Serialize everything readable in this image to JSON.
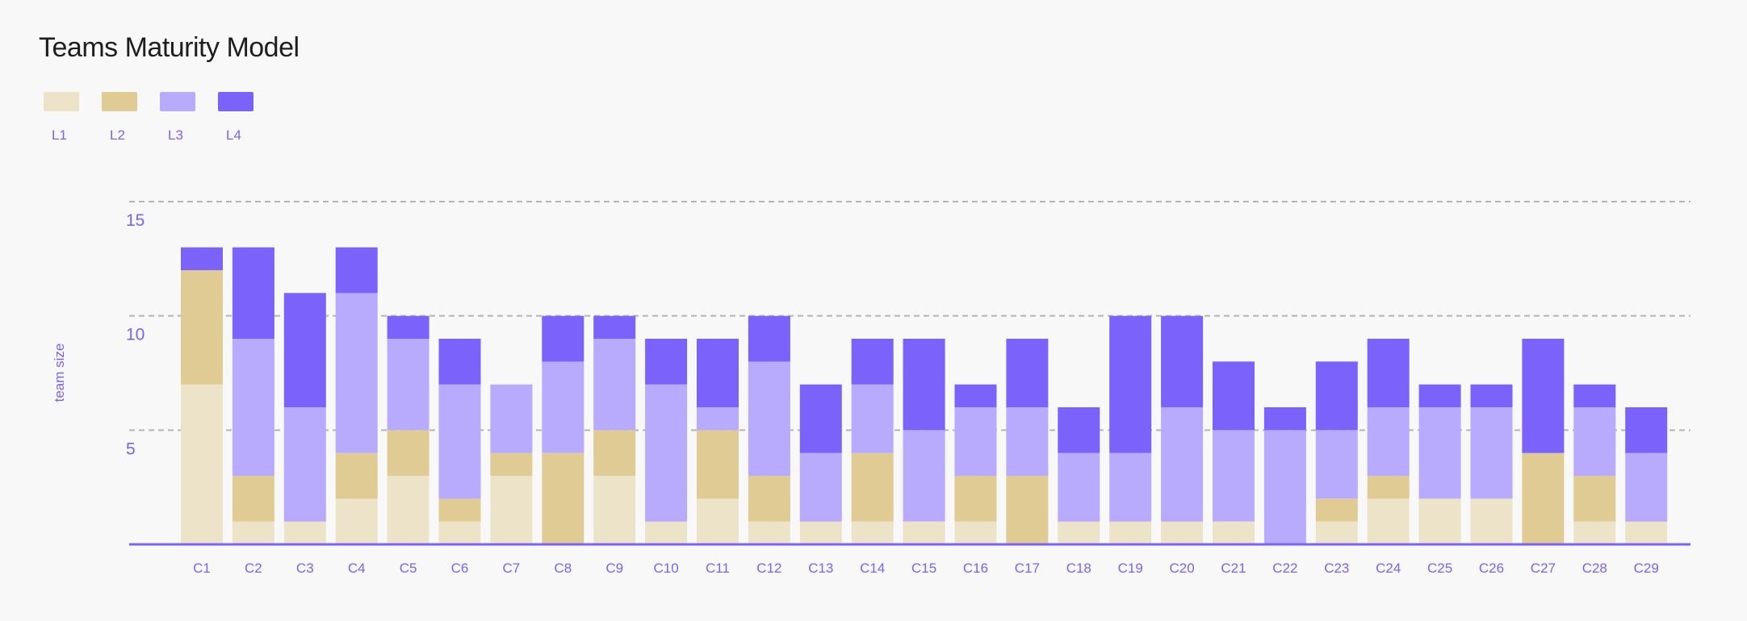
{
  "chart_data": {
    "type": "bar",
    "stacked": true,
    "title": "Teams Maturity Model",
    "xlabel": "",
    "ylabel": "team size",
    "ylim": [
      0,
      15
    ],
    "yticks": [
      5,
      10,
      15
    ],
    "grid": true,
    "legend_position": "top-left",
    "categories": [
      "C1",
      "C2",
      "C3",
      "C4",
      "C5",
      "C6",
      "C7",
      "C8",
      "C9",
      "C10",
      "C11",
      "C12",
      "C13",
      "C14",
      "C15",
      "C16",
      "C17",
      "C18",
      "C19",
      "C20",
      "C21",
      "C22",
      "C23",
      "C24",
      "C25",
      "C26",
      "C27",
      "C28",
      "C29"
    ],
    "series": [
      {
        "name": "L1",
        "color": "#ede3c8",
        "values": [
          7,
          1,
          1,
          2,
          3,
          1,
          3,
          0,
          3,
          1,
          2,
          1,
          1,
          1,
          1,
          1,
          0,
          1,
          1,
          1,
          1,
          0,
          1,
          2,
          2,
          2,
          0,
          1,
          1
        ]
      },
      {
        "name": "L2",
        "color": "#e0cb94",
        "values": [
          5,
          2,
          0,
          2,
          2,
          1,
          1,
          4,
          2,
          0,
          3,
          2,
          0,
          3,
          0,
          2,
          3,
          0,
          0,
          0,
          0,
          0,
          1,
          1,
          0,
          0,
          4,
          2,
          0
        ]
      },
      {
        "name": "L3",
        "color": "#b8abfd",
        "values": [
          0,
          6,
          5,
          7,
          4,
          5,
          3,
          4,
          4,
          6,
          1,
          5,
          3,
          3,
          4,
          3,
          3,
          3,
          3,
          5,
          4,
          5,
          3,
          3,
          4,
          4,
          0,
          3,
          3
        ]
      },
      {
        "name": "L4",
        "color": "#7b62fb",
        "values": [
          1,
          4,
          5,
          2,
          1,
          2,
          0,
          2,
          1,
          2,
          3,
          2,
          3,
          2,
          4,
          1,
          3,
          2,
          6,
          4,
          3,
          1,
          3,
          3,
          1,
          1,
          5,
          1,
          2
        ]
      }
    ]
  }
}
